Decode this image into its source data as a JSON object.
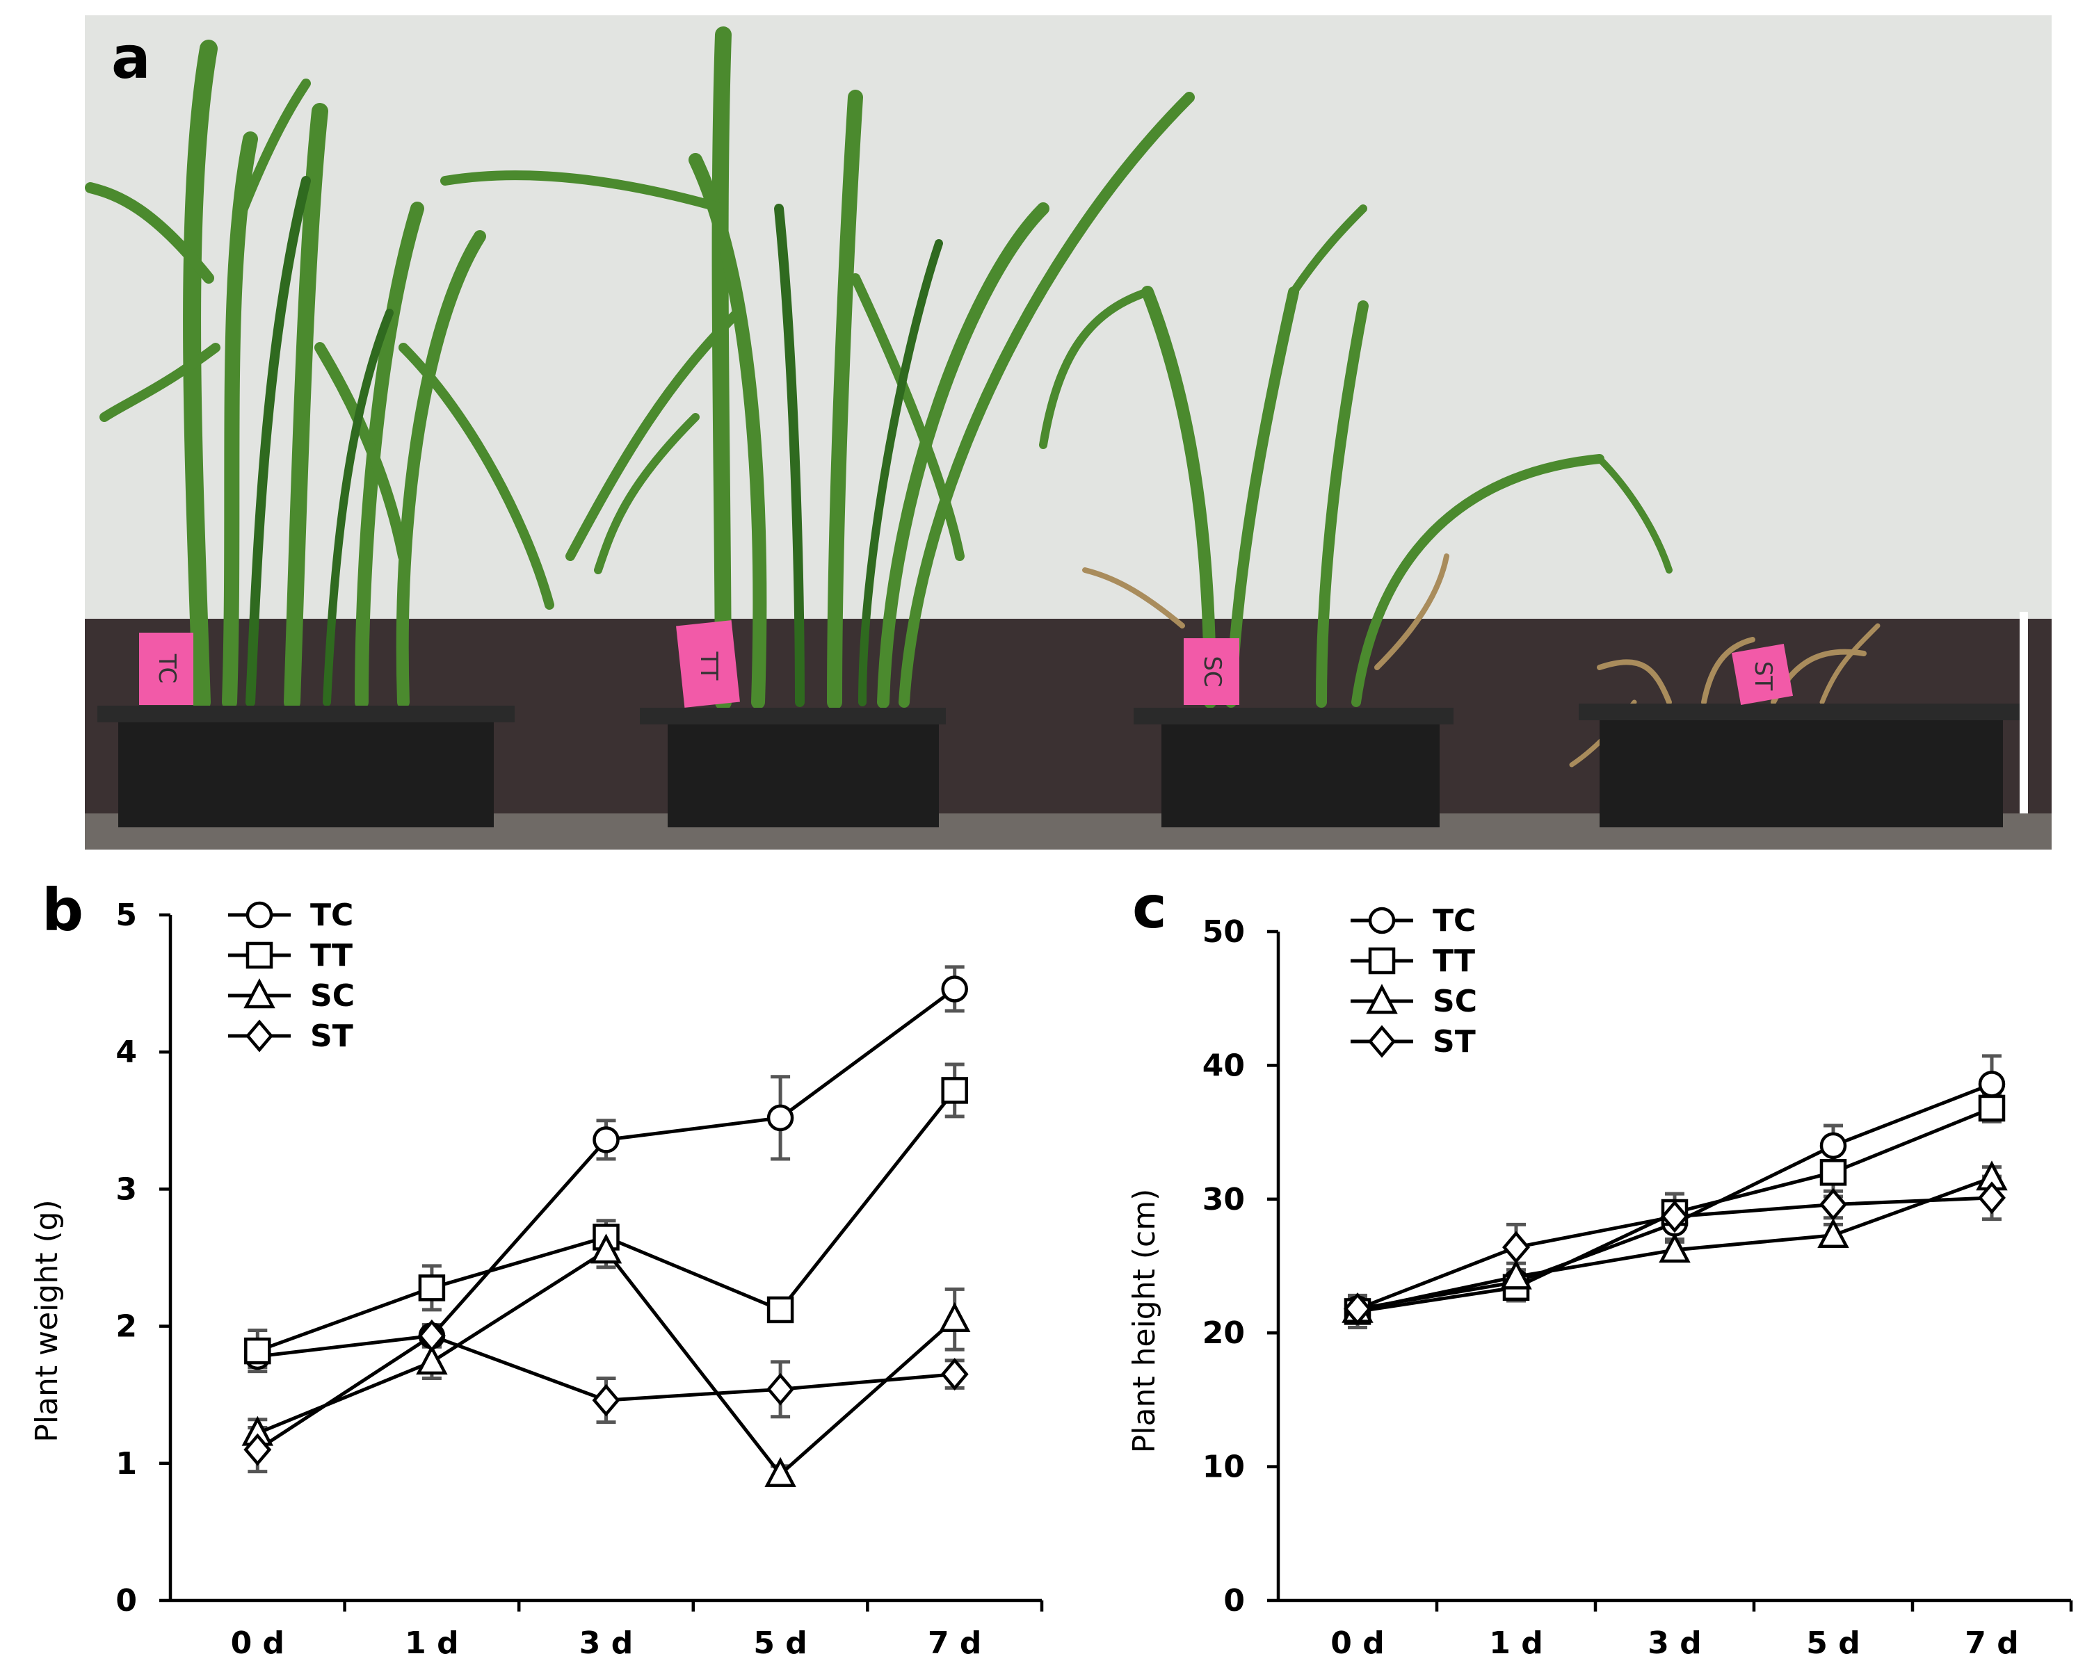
{
  "panel_a": {
    "letter": "a",
    "pot_labels": [
      "TC",
      "TT",
      "SC",
      "ST"
    ]
  },
  "colors": {
    "wall": "#e2e4e1",
    "baseboard": "#3b3132",
    "pot": "#1d1d1d",
    "tag": "#f25aa8",
    "leaf": "#4b8a2e",
    "leaf_dark": "#2f6a1f",
    "dry": "#a98c5c",
    "axis": "#000000",
    "error_bar": "#555555"
  },
  "chart_data": [
    {
      "panel": "b",
      "type": "line",
      "categories": [
        "0 d",
        "1 d",
        "3 d",
        "5 d",
        "7 d"
      ],
      "ylabel": "Plant weight (g)",
      "xlabel": "",
      "ylim": [
        0,
        5
      ],
      "yticks": [
        "0",
        "1",
        "2",
        "3",
        "4",
        "5"
      ],
      "legend_position": "top-left",
      "series": [
        {
          "name": "TC",
          "marker": "circle",
          "values": [
            1.78,
            1.93,
            3.36,
            3.52,
            4.46
          ],
          "errors": [
            0.08,
            0.08,
            0.14,
            0.3,
            0.16
          ]
        },
        {
          "name": "TT",
          "marker": "square",
          "values": [
            1.82,
            2.28,
            2.65,
            2.12,
            3.72
          ],
          "errors": [
            0.15,
            0.16,
            0.12,
            0.07,
            0.19
          ]
        },
        {
          "name": "SC",
          "marker": "triangle",
          "values": [
            1.22,
            1.74,
            2.55,
            0.92,
            2.05
          ],
          "errors": [
            0.1,
            0.12,
            0.12,
            0.06,
            0.22
          ]
        },
        {
          "name": "ST",
          "marker": "diamond",
          "values": [
            1.1,
            1.93,
            1.46,
            1.54,
            1.65
          ],
          "errors": [
            0.16,
            0.08,
            0.16,
            0.2,
            0.1
          ]
        }
      ]
    },
    {
      "panel": "c",
      "type": "line",
      "categories": [
        "0 d",
        "1 d",
        "3 d",
        "5 d",
        "7 d"
      ],
      "ylabel": "Plant height (cm)",
      "xlabel": "",
      "ylim": [
        0,
        50
      ],
      "yticks": [
        "0",
        "10",
        "20",
        "30",
        "40",
        "50"
      ],
      "legend_position": "top-left",
      "series": [
        {
          "name": "TC",
          "marker": "circle",
          "values": [
            21.8,
            23.8,
            28.2,
            34.0,
            38.6
          ],
          "errors": [
            0.9,
            0.9,
            1.2,
            1.5,
            2.1
          ]
        },
        {
          "name": "TT",
          "marker": "square",
          "values": [
            21.6,
            23.4,
            29.0,
            32.0,
            36.8
          ],
          "errors": [
            1.2,
            1.0,
            1.4,
            1.8,
            1.0
          ]
        },
        {
          "name": "SC",
          "marker": "triangle",
          "values": [
            21.7,
            24.2,
            26.2,
            27.3,
            31.6
          ],
          "errors": [
            0.8,
            1.0,
            0.6,
            0.8,
            0.8
          ]
        },
        {
          "name": "ST",
          "marker": "diamond",
          "values": [
            21.8,
            26.4,
            28.7,
            29.6,
            30.1
          ],
          "errors": [
            0.7,
            1.7,
            1.0,
            1.0,
            1.6
          ]
        }
      ]
    }
  ]
}
